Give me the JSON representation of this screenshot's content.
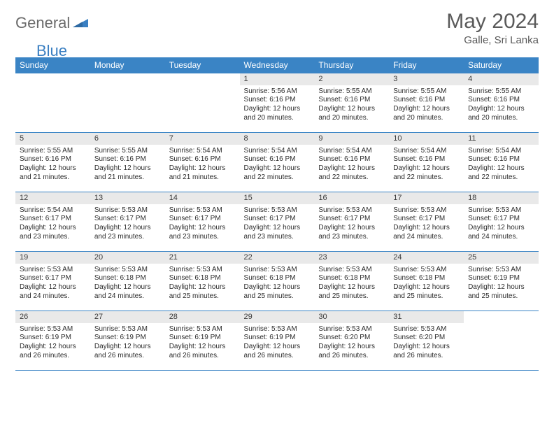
{
  "logo": {
    "part1": "General",
    "part2": "Blue"
  },
  "title": "May 2024",
  "location": "Galle, Sri Lanka",
  "colors": {
    "header_bg": "#3a84c5",
    "header_text": "#ffffff",
    "daynum_bg": "#e9e9e9",
    "border": "#3a84c5",
    "title_color": "#5a5a5a",
    "logo_gray": "#6b6b6b",
    "logo_blue": "#3a7fc2"
  },
  "day_headers": [
    "Sunday",
    "Monday",
    "Tuesday",
    "Wednesday",
    "Thursday",
    "Friday",
    "Saturday"
  ],
  "weeks": [
    [
      {
        "blank": true
      },
      {
        "blank": true
      },
      {
        "blank": true
      },
      {
        "num": "1",
        "sunrise": "5:56 AM",
        "sunset": "6:16 PM",
        "daylight": "12 hours and 20 minutes."
      },
      {
        "num": "2",
        "sunrise": "5:55 AM",
        "sunset": "6:16 PM",
        "daylight": "12 hours and 20 minutes."
      },
      {
        "num": "3",
        "sunrise": "5:55 AM",
        "sunset": "6:16 PM",
        "daylight": "12 hours and 20 minutes."
      },
      {
        "num": "4",
        "sunrise": "5:55 AM",
        "sunset": "6:16 PM",
        "daylight": "12 hours and 20 minutes."
      }
    ],
    [
      {
        "num": "5",
        "sunrise": "5:55 AM",
        "sunset": "6:16 PM",
        "daylight": "12 hours and 21 minutes."
      },
      {
        "num": "6",
        "sunrise": "5:55 AM",
        "sunset": "6:16 PM",
        "daylight": "12 hours and 21 minutes."
      },
      {
        "num": "7",
        "sunrise": "5:54 AM",
        "sunset": "6:16 PM",
        "daylight": "12 hours and 21 minutes."
      },
      {
        "num": "8",
        "sunrise": "5:54 AM",
        "sunset": "6:16 PM",
        "daylight": "12 hours and 22 minutes."
      },
      {
        "num": "9",
        "sunrise": "5:54 AM",
        "sunset": "6:16 PM",
        "daylight": "12 hours and 22 minutes."
      },
      {
        "num": "10",
        "sunrise": "5:54 AM",
        "sunset": "6:16 PM",
        "daylight": "12 hours and 22 minutes."
      },
      {
        "num": "11",
        "sunrise": "5:54 AM",
        "sunset": "6:16 PM",
        "daylight": "12 hours and 22 minutes."
      }
    ],
    [
      {
        "num": "12",
        "sunrise": "5:54 AM",
        "sunset": "6:17 PM",
        "daylight": "12 hours and 23 minutes."
      },
      {
        "num": "13",
        "sunrise": "5:53 AM",
        "sunset": "6:17 PM",
        "daylight": "12 hours and 23 minutes."
      },
      {
        "num": "14",
        "sunrise": "5:53 AM",
        "sunset": "6:17 PM",
        "daylight": "12 hours and 23 minutes."
      },
      {
        "num": "15",
        "sunrise": "5:53 AM",
        "sunset": "6:17 PM",
        "daylight": "12 hours and 23 minutes."
      },
      {
        "num": "16",
        "sunrise": "5:53 AM",
        "sunset": "6:17 PM",
        "daylight": "12 hours and 23 minutes."
      },
      {
        "num": "17",
        "sunrise": "5:53 AM",
        "sunset": "6:17 PM",
        "daylight": "12 hours and 24 minutes."
      },
      {
        "num": "18",
        "sunrise": "5:53 AM",
        "sunset": "6:17 PM",
        "daylight": "12 hours and 24 minutes."
      }
    ],
    [
      {
        "num": "19",
        "sunrise": "5:53 AM",
        "sunset": "6:17 PM",
        "daylight": "12 hours and 24 minutes."
      },
      {
        "num": "20",
        "sunrise": "5:53 AM",
        "sunset": "6:18 PM",
        "daylight": "12 hours and 24 minutes."
      },
      {
        "num": "21",
        "sunrise": "5:53 AM",
        "sunset": "6:18 PM",
        "daylight": "12 hours and 25 minutes."
      },
      {
        "num": "22",
        "sunrise": "5:53 AM",
        "sunset": "6:18 PM",
        "daylight": "12 hours and 25 minutes."
      },
      {
        "num": "23",
        "sunrise": "5:53 AM",
        "sunset": "6:18 PM",
        "daylight": "12 hours and 25 minutes."
      },
      {
        "num": "24",
        "sunrise": "5:53 AM",
        "sunset": "6:18 PM",
        "daylight": "12 hours and 25 minutes."
      },
      {
        "num": "25",
        "sunrise": "5:53 AM",
        "sunset": "6:19 PM",
        "daylight": "12 hours and 25 minutes."
      }
    ],
    [
      {
        "num": "26",
        "sunrise": "5:53 AM",
        "sunset": "6:19 PM",
        "daylight": "12 hours and 26 minutes."
      },
      {
        "num": "27",
        "sunrise": "5:53 AM",
        "sunset": "6:19 PM",
        "daylight": "12 hours and 26 minutes."
      },
      {
        "num": "28",
        "sunrise": "5:53 AM",
        "sunset": "6:19 PM",
        "daylight": "12 hours and 26 minutes."
      },
      {
        "num": "29",
        "sunrise": "5:53 AM",
        "sunset": "6:19 PM",
        "daylight": "12 hours and 26 minutes."
      },
      {
        "num": "30",
        "sunrise": "5:53 AM",
        "sunset": "6:20 PM",
        "daylight": "12 hours and 26 minutes."
      },
      {
        "num": "31",
        "sunrise": "5:53 AM",
        "sunset": "6:20 PM",
        "daylight": "12 hours and 26 minutes."
      },
      {
        "blank": true
      }
    ]
  ],
  "labels": {
    "sunrise": "Sunrise:",
    "sunset": "Sunset:",
    "daylight": "Daylight:"
  }
}
